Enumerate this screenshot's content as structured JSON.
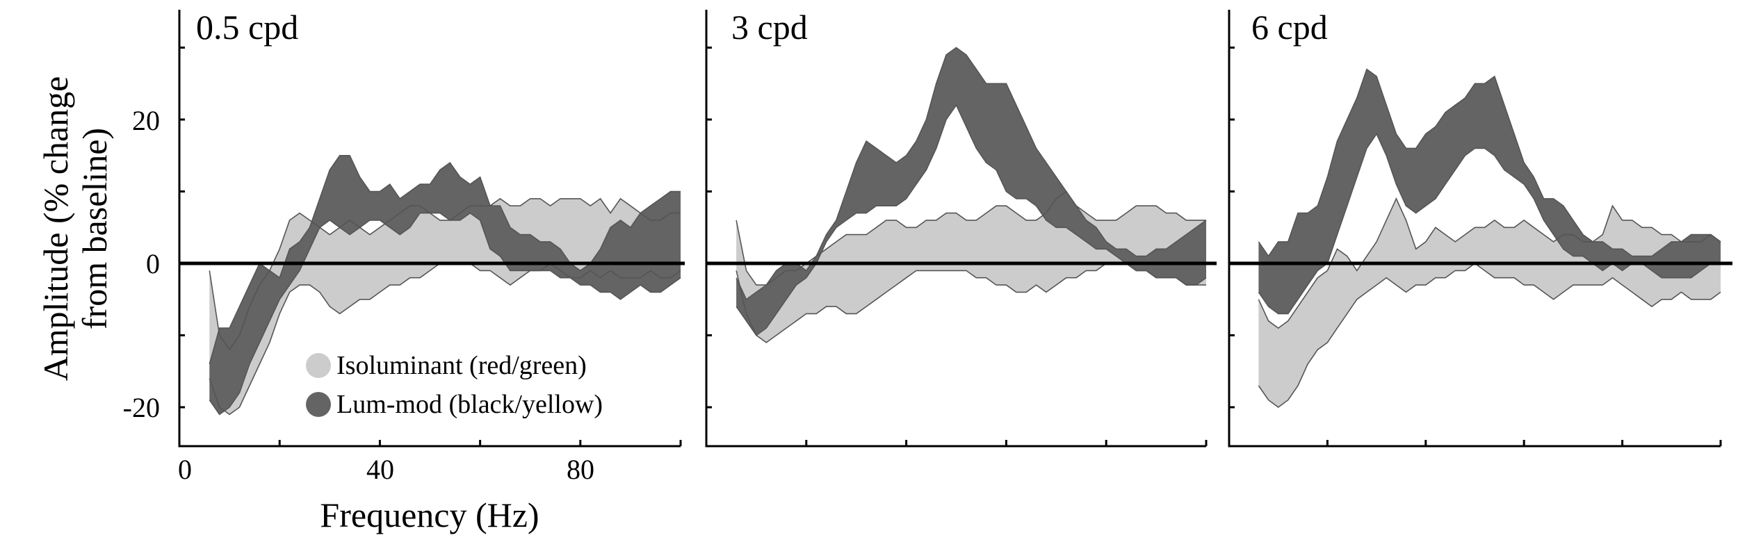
{
  "figure": {
    "ylabel_line1": "Amplitude (% change",
    "ylabel_line2": "from baseline)",
    "xlabel": "Frequency (Hz)",
    "yticks": [
      {
        "value": 20,
        "label": "20"
      },
      {
        "value": 0,
        "label": "0"
      },
      {
        "value": -20,
        "label": "-20"
      }
    ],
    "xticks": [
      {
        "value": 0,
        "label": "0"
      },
      {
        "value": 40,
        "label": "40"
      },
      {
        "value": 80,
        "label": "80"
      }
    ],
    "legend": [
      {
        "label": "Isoluminant (red/green)",
        "color": "#cccccc"
      },
      {
        "label": "Lum-mod (black/yellow)",
        "color": "#646464"
      }
    ],
    "colors": {
      "isoluminant": "#cccccc",
      "lum_mod": "#646464",
      "outline": "#555555",
      "zero_line": "#000000"
    }
  },
  "chart_data": [
    {
      "type": "area",
      "title": "0.5 cpd",
      "xlabel": "Frequency (Hz)",
      "ylabel": "Amplitude (% change from baseline)",
      "xlim": [
        0,
        100
      ],
      "ylim": [
        -25,
        35
      ],
      "xticks": [
        0,
        20,
        40,
        60,
        80,
        100
      ],
      "yticks": [
        -20,
        -10,
        0,
        10,
        20,
        30
      ],
      "grid": false,
      "legend_position": "lower center",
      "x": [
        6,
        8,
        10,
        12,
        14,
        16,
        18,
        20,
        22,
        24,
        26,
        28,
        30,
        32,
        34,
        36,
        38,
        40,
        42,
        44,
        46,
        48,
        50,
        52,
        54,
        56,
        58,
        60,
        62,
        64,
        66,
        68,
        70,
        72,
        74,
        76,
        78,
        80,
        82,
        84,
        86,
        88,
        90,
        92,
        94,
        96,
        98,
        100
      ],
      "series": [
        {
          "name": "Isoluminant (red/green)",
          "upper": [
            -1,
            -10,
            -12,
            -10,
            -6,
            -3,
            -1,
            2,
            6,
            7,
            6,
            5,
            4,
            5,
            6,
            5,
            4,
            5,
            6,
            7,
            8,
            8,
            7,
            6,
            6,
            7,
            8,
            8,
            8,
            9,
            8,
            8,
            9,
            9,
            8,
            9,
            9,
            9,
            8,
            9,
            7,
            9,
            8,
            7,
            6,
            6,
            7,
            7
          ],
          "lower": [
            -16,
            -20,
            -21,
            -20,
            -17,
            -14,
            -11,
            -7,
            -4,
            -3,
            -3,
            -4,
            -6,
            -7,
            -6,
            -5,
            -5,
            -4,
            -3,
            -3,
            -2,
            -2,
            -1,
            0,
            0,
            0,
            0,
            -1,
            -1,
            -2,
            -3,
            -2,
            -1,
            -1,
            0,
            -1,
            -2,
            -2,
            -1,
            -2,
            -1,
            -2,
            -2,
            -2,
            -1,
            -2,
            -2,
            -1
          ]
        },
        {
          "name": "Lum-mod (black/yellow)",
          "upper": [
            -14,
            -9,
            -9,
            -6,
            -3,
            0,
            -1,
            -2,
            2,
            3,
            5,
            9,
            13,
            15,
            15,
            12,
            10,
            10,
            11,
            9,
            10,
            11,
            11,
            13,
            14,
            12,
            11,
            12,
            8,
            8,
            5,
            4,
            4,
            3,
            3,
            2,
            0,
            -1,
            0,
            2,
            5,
            6,
            5,
            7,
            8,
            9,
            10,
            10
          ],
          "lower": [
            -19,
            -21,
            -20,
            -18,
            -14,
            -11,
            -8,
            -5,
            -3,
            -1,
            2,
            5,
            6,
            5,
            4,
            5,
            6,
            6,
            5,
            4,
            5,
            7,
            7,
            7,
            6,
            6,
            7,
            6,
            2,
            1,
            -1,
            -1,
            -1,
            -1,
            -1,
            -2,
            -2,
            -3,
            -3,
            -4,
            -4,
            -5,
            -4,
            -3,
            -4,
            -4,
            -3,
            -2
          ]
        }
      ]
    },
    {
      "type": "area",
      "title": "3 cpd",
      "xlabel": "Frequency (Hz)",
      "ylabel": "Amplitude (% change from baseline)",
      "xlim": [
        0,
        100
      ],
      "ylim": [
        -25,
        35
      ],
      "xticks": [
        0,
        20,
        40,
        60,
        80,
        100
      ],
      "yticks": [
        -20,
        -10,
        0,
        10,
        20,
        30
      ],
      "grid": false,
      "x": [
        6,
        8,
        10,
        12,
        14,
        16,
        18,
        20,
        22,
        24,
        26,
        28,
        30,
        32,
        34,
        36,
        38,
        40,
        42,
        44,
        46,
        48,
        50,
        52,
        54,
        56,
        58,
        60,
        62,
        64,
        66,
        68,
        70,
        72,
        74,
        76,
        78,
        80,
        82,
        84,
        86,
        88,
        90,
        92,
        94,
        96,
        98,
        100
      ],
      "series": [
        {
          "name": "Isoluminant (red/green)",
          "upper": [
            6,
            -1,
            -3,
            -3,
            -2,
            -1,
            -1,
            0,
            1,
            2,
            3,
            4,
            4,
            4,
            5,
            6,
            6,
            5,
            5,
            6,
            6,
            7,
            7,
            6,
            6,
            7,
            8,
            8,
            7,
            6,
            6,
            7,
            9,
            10,
            8,
            7,
            6,
            6,
            6,
            7,
            8,
            8,
            8,
            7,
            7,
            6,
            6,
            6
          ],
          "lower": [
            -1,
            -7,
            -10,
            -11,
            -10,
            -9,
            -8,
            -7,
            -7,
            -6,
            -6,
            -7,
            -7,
            -6,
            -5,
            -4,
            -3,
            -2,
            -1,
            -1,
            -1,
            -1,
            -1,
            -1,
            -2,
            -2,
            -3,
            -3,
            -4,
            -4,
            -3,
            -4,
            -3,
            -2,
            -2,
            -1,
            -1,
            0,
            0,
            0,
            -1,
            -1,
            -2,
            -2,
            -2,
            -3,
            -3,
            -3
          ]
        },
        {
          "name": "Lum-mod (black/yellow)",
          "upper": [
            -2,
            -5,
            -4,
            -3,
            -1,
            0,
            0,
            -1,
            1,
            4,
            6,
            10,
            14,
            17,
            16,
            15,
            14,
            15,
            17,
            20,
            25,
            29,
            30,
            29,
            27,
            25,
            25,
            25,
            22,
            19,
            16,
            14,
            12,
            10,
            8,
            6,
            5,
            3,
            2,
            2,
            1,
            1,
            2,
            2,
            3,
            4,
            5,
            6
          ],
          "lower": [
            -6,
            -8,
            -10,
            -9,
            -7,
            -5,
            -3,
            -2,
            0,
            3,
            5,
            6,
            7,
            7,
            8,
            8,
            8,
            9,
            11,
            13,
            16,
            20,
            22,
            19,
            16,
            14,
            13,
            10,
            9,
            9,
            8,
            6,
            5,
            5,
            4,
            3,
            2,
            2,
            1,
            0,
            -1,
            -1,
            -2,
            -2,
            -2,
            -3,
            -3,
            -2
          ]
        }
      ]
    },
    {
      "type": "area",
      "title": "6 cpd",
      "xlabel": "Frequency (Hz)",
      "ylabel": "Amplitude (% change from baseline)",
      "xlim": [
        0,
        100
      ],
      "ylim": [
        -25,
        35
      ],
      "xticks": [
        0,
        20,
        40,
        60,
        80,
        100
      ],
      "yticks": [
        -20,
        -10,
        0,
        10,
        20,
        30
      ],
      "grid": false,
      "x": [
        6,
        8,
        10,
        12,
        14,
        16,
        18,
        20,
        22,
        24,
        26,
        28,
        30,
        32,
        34,
        36,
        38,
        40,
        42,
        44,
        46,
        48,
        50,
        52,
        54,
        56,
        58,
        60,
        62,
        64,
        66,
        68,
        70,
        72,
        74,
        76,
        78,
        80,
        82,
        84,
        86,
        88,
        90,
        92,
        94,
        96,
        98,
        100
      ],
      "series": [
        {
          "name": "Isoluminant (red/green)",
          "upper": [
            -5,
            -8,
            -9,
            -8,
            -6,
            -4,
            -2,
            -1,
            2,
            1,
            -1,
            1,
            3,
            6,
            9,
            6,
            2,
            3,
            5,
            4,
            3,
            4,
            5,
            5,
            6,
            5,
            5,
            6,
            5,
            4,
            3,
            4,
            4,
            3,
            3,
            4,
            8,
            6,
            6,
            5,
            5,
            4,
            4,
            3,
            3,
            3,
            4,
            3
          ],
          "lower": [
            -17,
            -19,
            -20,
            -19,
            -17,
            -14,
            -12,
            -11,
            -9,
            -7,
            -5,
            -4,
            -3,
            -2,
            -3,
            -4,
            -3,
            -3,
            -2,
            -2,
            -1,
            -1,
            0,
            -1,
            -2,
            -2,
            -2,
            -3,
            -3,
            -4,
            -5,
            -4,
            -3,
            -3,
            -3,
            -3,
            -2,
            -3,
            -4,
            -5,
            -6,
            -5,
            -5,
            -4,
            -5,
            -5,
            -5,
            -4
          ]
        },
        {
          "name": "Lum-mod (black/yellow)",
          "upper": [
            3,
            1,
            3,
            3,
            7,
            7,
            8,
            12,
            17,
            20,
            23,
            27,
            26,
            22,
            18,
            16,
            16,
            18,
            19,
            21,
            22,
            23,
            25,
            25,
            26,
            22,
            18,
            14,
            12,
            9,
            9,
            8,
            6,
            4,
            3,
            3,
            2,
            2,
            1,
            1,
            1,
            2,
            3,
            3,
            4,
            4,
            4,
            3
          ],
          "lower": [
            -4,
            -6,
            -7,
            -7,
            -5,
            -3,
            -1,
            0,
            4,
            8,
            12,
            16,
            18,
            15,
            11,
            8,
            7,
            8,
            9,
            11,
            13,
            15,
            16,
            16,
            15,
            13,
            12,
            11,
            9,
            6,
            4,
            2,
            1,
            1,
            0,
            -1,
            0,
            -1,
            0,
            0,
            -1,
            -2,
            -2,
            -2,
            -2,
            -1,
            0,
            0
          ]
        }
      ]
    }
  ]
}
